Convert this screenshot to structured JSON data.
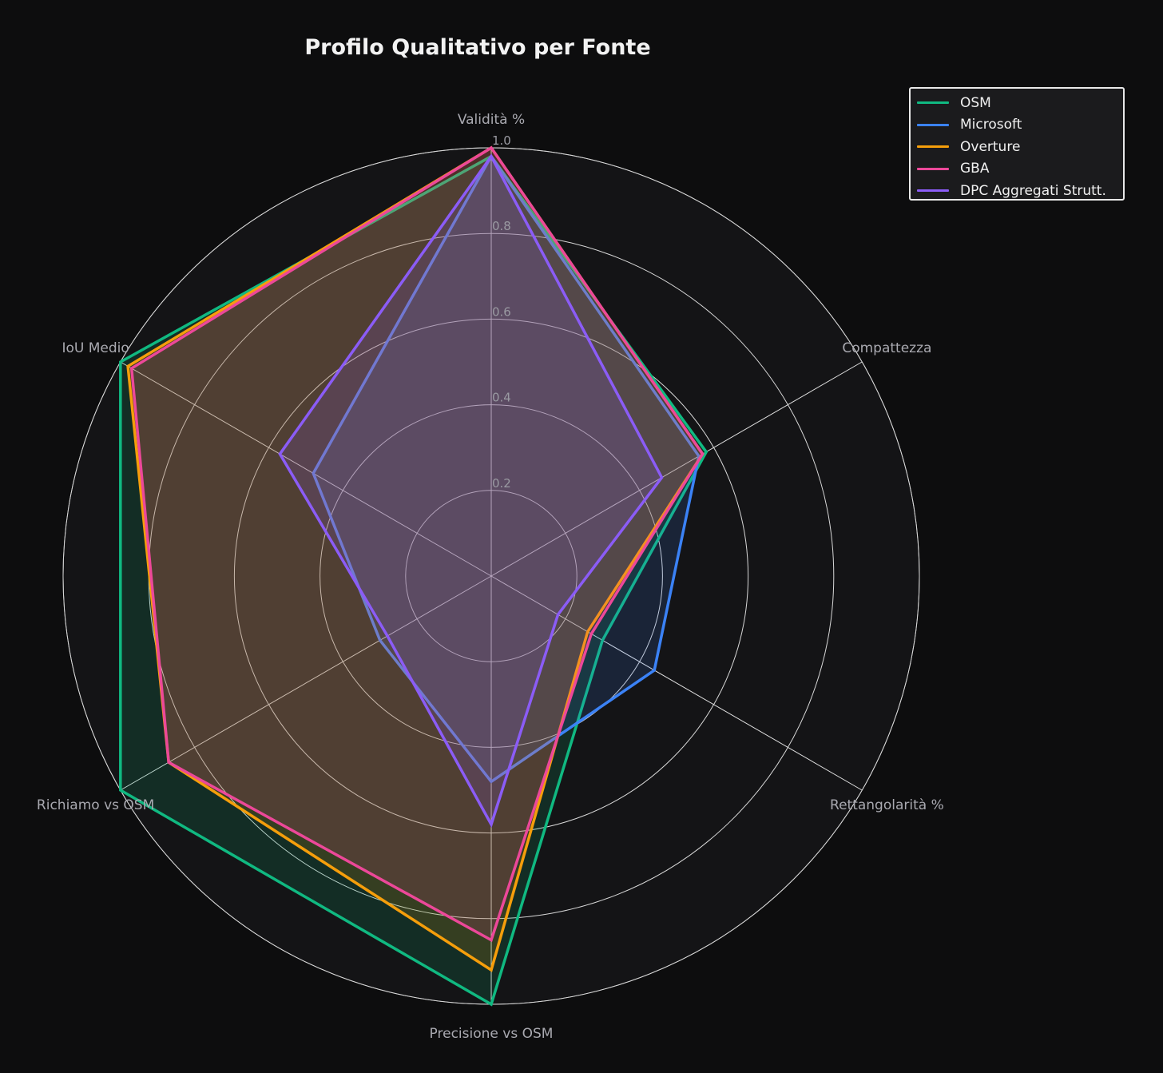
{
  "chart_data": {
    "type": "radar",
    "title": "Profilo Qualitativo per Fonte",
    "axes": [
      "Validità %",
      "Compattezza",
      "Rettangolarità %",
      "Precisione vs OSM",
      "Richiamo vs OSM",
      "IoU Medio"
    ],
    "ticks": [
      "0.2",
      "0.4",
      "0.6",
      "0.8",
      "1.0"
    ],
    "tick_values": [
      0.2,
      0.4,
      0.6,
      0.8,
      1.0
    ],
    "rmax": 1.0,
    "grid": true,
    "legend_position": "top-right",
    "series": [
      {
        "name": "OSM",
        "color": "#10b981",
        "values": [
          0.98,
          0.58,
          0.3,
          1.0,
          1.0,
          1.0
        ]
      },
      {
        "name": "Microsoft",
        "color": "#3b82f6",
        "values": [
          0.98,
          0.56,
          0.44,
          0.48,
          0.3,
          0.48
        ]
      },
      {
        "name": "Overture",
        "color": "#f59e0b",
        "values": [
          1.0,
          0.57,
          0.26,
          0.92,
          0.87,
          0.98
        ]
      },
      {
        "name": "GBA",
        "color": "#ec4899",
        "values": [
          1.0,
          0.57,
          0.27,
          0.85,
          0.87,
          0.97
        ]
      },
      {
        "name": "DPC Aggregati Strutt.",
        "color": "#8b5cf6",
        "values": [
          0.98,
          0.46,
          0.18,
          0.58,
          0.28,
          0.57
        ]
      }
    ]
  }
}
